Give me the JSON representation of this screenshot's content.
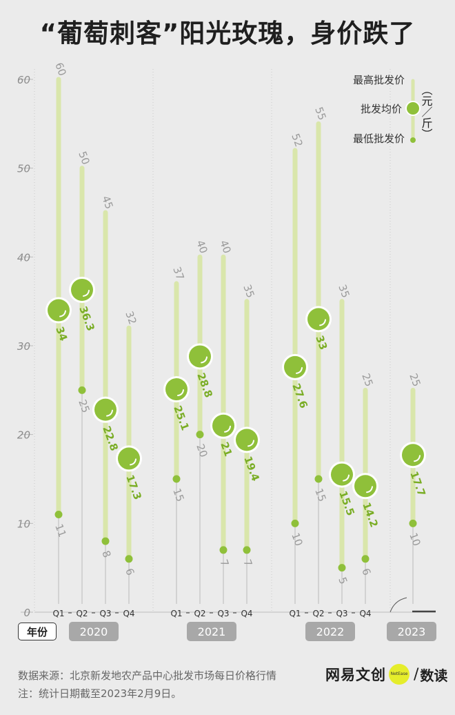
{
  "title": "“葡萄刺客”阳光玫瑰，身价跌了",
  "legend": {
    "high": "最高批发价",
    "avg": "批发均价",
    "low": "最低批发价",
    "unit": "（元／斤）"
  },
  "axis": {
    "year_label": "年份"
  },
  "footer": {
    "source": "数据来源：北京新发地农产品中心批发市场每日价格行情",
    "note": "注：统计日期截至2023年2月9日。",
    "brand1": "网易文创",
    "brand_dot": "NetEase",
    "brand_slash": "/",
    "brand2": "数读"
  },
  "colors": {
    "bar": "#d9e6ab",
    "avg": "#8fc03a",
    "low": "#8fc03a",
    "text_light": "#9a9a9a",
    "avg_text": "#7aad25",
    "year_box": "#a8a8a8"
  },
  "chart_data": {
    "type": "range",
    "ylim": [
      0,
      60
    ],
    "yticks": [
      0,
      10,
      20,
      30,
      40,
      50,
      60
    ],
    "groups": [
      {
        "year": "2020",
        "points": [
          {
            "q": "Q1",
            "high": 60,
            "avg": 34,
            "low": 11
          },
          {
            "q": "Q2",
            "high": 50,
            "avg": 36.3,
            "low": 25
          },
          {
            "q": "Q3",
            "high": 45,
            "avg": 22.8,
            "low": 8
          },
          {
            "q": "Q4",
            "high": 32,
            "avg": 17.3,
            "low": 6
          }
        ]
      },
      {
        "year": "2021",
        "points": [
          {
            "q": "Q1",
            "high": 37,
            "avg": 25.1,
            "low": 15
          },
          {
            "q": "Q2",
            "high": 40,
            "avg": 28.8,
            "low": 20
          },
          {
            "q": "Q3",
            "high": 40,
            "avg": 21,
            "low": 7
          },
          {
            "q": "Q4",
            "high": 35,
            "avg": 19.4,
            "low": 7
          }
        ]
      },
      {
        "year": "2022",
        "points": [
          {
            "q": "Q1",
            "high": 52,
            "avg": 27.6,
            "low": 10
          },
          {
            "q": "Q2",
            "high": 55,
            "avg": 33,
            "low": 15
          },
          {
            "q": "Q3",
            "high": 35,
            "avg": 15.5,
            "low": 5
          },
          {
            "q": "Q4",
            "high": 25,
            "avg": 14.2,
            "low": 6
          }
        ]
      },
      {
        "year": "2023",
        "points": [
          {
            "q": "",
            "high": 25,
            "avg": 17.7,
            "low": 10
          }
        ]
      }
    ]
  }
}
